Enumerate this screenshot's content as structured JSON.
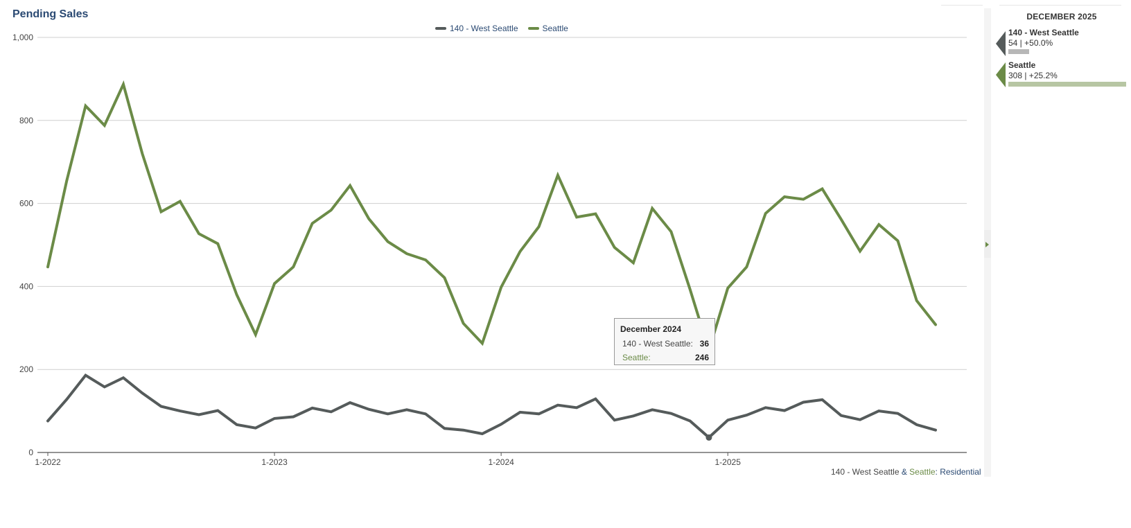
{
  "title": "Pending Sales",
  "legend": [
    {
      "label": "140 - West Seattle",
      "color": "#555b5b"
    },
    {
      "label": "Seattle",
      "color": "#6b8b47"
    }
  ],
  "source": {
    "part1": "140 - West Seattle",
    "amp": " & ",
    "part2": "Seattle",
    "colon": ": ",
    "part3": "Residential"
  },
  "tooltip": {
    "title": "December 2024",
    "rows": [
      {
        "label": "140 - West Seattle:",
        "value": "36"
      },
      {
        "label": "Seattle:",
        "value": "246"
      }
    ]
  },
  "side_panel": {
    "header": "DECEMBER 2025",
    "items": [
      {
        "name": "140 - West Seattle",
        "value": "54 | +50.0%",
        "bar_value": 54,
        "color": "#555b5b",
        "bar_color": "#b7b7b7"
      },
      {
        "name": "Seattle",
        "value": "308 | +25.2%",
        "bar_value": 308,
        "color": "#6b8b47",
        "bar_color": "#b7c6a3"
      }
    ]
  },
  "chart_data": {
    "type": "line",
    "title": "Pending Sales",
    "ylim": [
      0,
      1000
    ],
    "yticks": [
      0,
      200,
      400,
      600,
      800,
      1000
    ],
    "ytick_labels": [
      "0",
      "200",
      "400",
      "600",
      "800",
      "1,000"
    ],
    "xtick_labels": [
      "1-2022",
      "1-2023",
      "1-2024",
      "1-2025"
    ],
    "xtick_index": [
      0,
      12,
      24,
      36
    ],
    "grid": true,
    "legend_position": "top-center",
    "highlight_index": 35,
    "x": [
      "2022-01",
      "2022-02",
      "2022-03",
      "2022-04",
      "2022-05",
      "2022-06",
      "2022-07",
      "2022-08",
      "2022-09",
      "2022-10",
      "2022-11",
      "2022-12",
      "2023-01",
      "2023-02",
      "2023-03",
      "2023-04",
      "2023-05",
      "2023-06",
      "2023-07",
      "2023-08",
      "2023-09",
      "2023-10",
      "2023-11",
      "2023-12",
      "2024-01",
      "2024-02",
      "2024-03",
      "2024-04",
      "2024-05",
      "2024-06",
      "2024-07",
      "2024-08",
      "2024-09",
      "2024-10",
      "2024-11",
      "2024-12",
      "2025-01",
      "2025-02",
      "2025-03",
      "2025-04",
      "2025-05",
      "2025-06",
      "2025-07",
      "2025-08",
      "2025-09",
      "2025-10",
      "2025-11",
      "2025-12"
    ],
    "series": [
      {
        "name": "140 - West Seattle",
        "color": "#555b5b",
        "values": [
          76,
          128,
          186,
          158,
          180,
          143,
          111,
          100,
          91,
          101,
          67,
          59,
          82,
          86,
          107,
          98,
          120,
          104,
          93,
          103,
          93,
          58,
          54,
          45,
          68,
          97,
          93,
          114,
          108,
          129,
          78,
          88,
          103,
          94,
          76,
          36,
          78,
          90,
          108,
          101,
          121,
          127,
          89,
          79,
          100,
          94,
          67,
          54
        ]
      },
      {
        "name": "Seattle",
        "color": "#6b8b47",
        "values": [
          447,
          655,
          835,
          788,
          887,
          720,
          580,
          605,
          527,
          503,
          380,
          284,
          407,
          447,
          552,
          584,
          643,
          563,
          508,
          479,
          464,
          421,
          311,
          263,
          398,
          484,
          544,
          668,
          567,
          575,
          494,
          457,
          588,
          532,
          393,
          246,
          396,
          447,
          576,
          616,
          610,
          635,
          562,
          485,
          549,
          510,
          366,
          308
        ]
      }
    ]
  }
}
